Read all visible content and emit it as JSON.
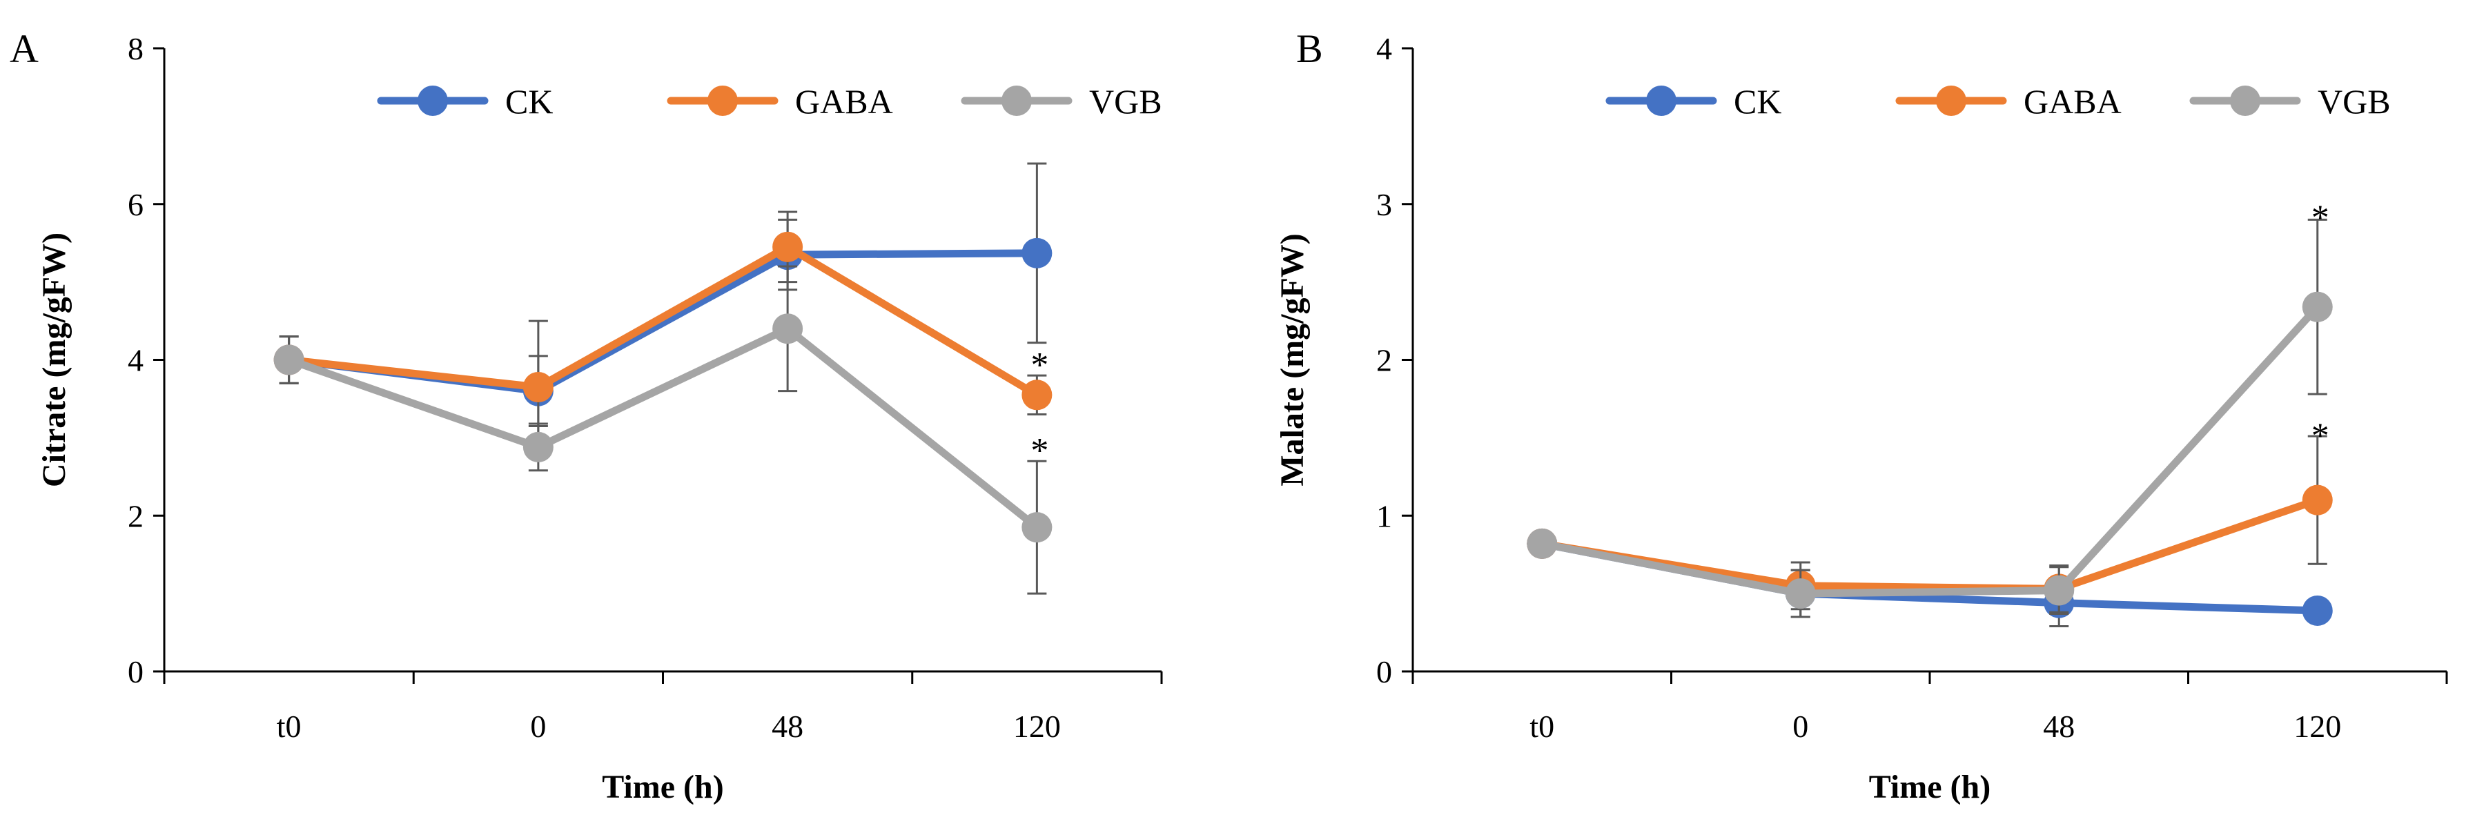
{
  "chart_data": [
    {
      "type": "line",
      "panel_label": "A",
      "categories": [
        "t0",
        "0",
        "48",
        "120"
      ],
      "xlabel": "Time (h)",
      "ylabel": "Citrate (mg/gFW)",
      "ylim": [
        0,
        8
      ],
      "yticks": [
        0,
        2,
        4,
        6,
        8
      ],
      "legend_position": "top",
      "series": [
        {
          "name": "CK",
          "color": "#4472C4",
          "values": [
            4.0,
            3.6,
            5.35,
            5.37
          ],
          "errors": [
            0.3,
            0.45,
            0.45,
            1.15
          ]
        },
        {
          "name": "GABA",
          "color": "#ED7D31",
          "values": [
            4.0,
            3.65,
            5.45,
            3.55
          ],
          "errors": [
            0.3,
            0.85,
            0.45,
            0.25
          ]
        },
        {
          "name": "VGB",
          "color": "#A5A5A5",
          "values": [
            4.0,
            2.88,
            4.4,
            1.85
          ],
          "errors": [
            0.3,
            0.3,
            0.8,
            0.85
          ]
        }
      ],
      "annotations": [
        {
          "text": "*",
          "category": "120",
          "value": 4.05
        },
        {
          "text": "*",
          "category": "120",
          "value": 2.95
        }
      ]
    },
    {
      "type": "line",
      "panel_label": "B",
      "categories": [
        "t0",
        "0",
        "48",
        "120"
      ],
      "xlabel": "Time (h)",
      "ylabel": "Malate (mg/gFW)",
      "ylim": [
        0,
        4
      ],
      "yticks": [
        0,
        1,
        2,
        3,
        4
      ],
      "legend_position": "top",
      "series": [
        {
          "name": "CK",
          "color": "#4472C4",
          "values": [
            0.82,
            0.5,
            0.44,
            0.39
          ],
          "errors": [
            0.05,
            0.15,
            0.15,
            0.03
          ]
        },
        {
          "name": "GABA",
          "color": "#ED7D31",
          "values": [
            0.82,
            0.55,
            0.53,
            1.1
          ],
          "errors": [
            0.05,
            0.15,
            0.15,
            0.41
          ]
        },
        {
          "name": "VGB",
          "color": "#A5A5A5",
          "values": [
            0.82,
            0.5,
            0.52,
            2.34
          ],
          "errors": [
            0.05,
            0.15,
            0.15,
            0.56
          ]
        }
      ],
      "annotations": [
        {
          "text": "*",
          "category": "120",
          "value": 2.97
        },
        {
          "text": "*",
          "category": "120",
          "value": 1.57
        }
      ]
    }
  ]
}
